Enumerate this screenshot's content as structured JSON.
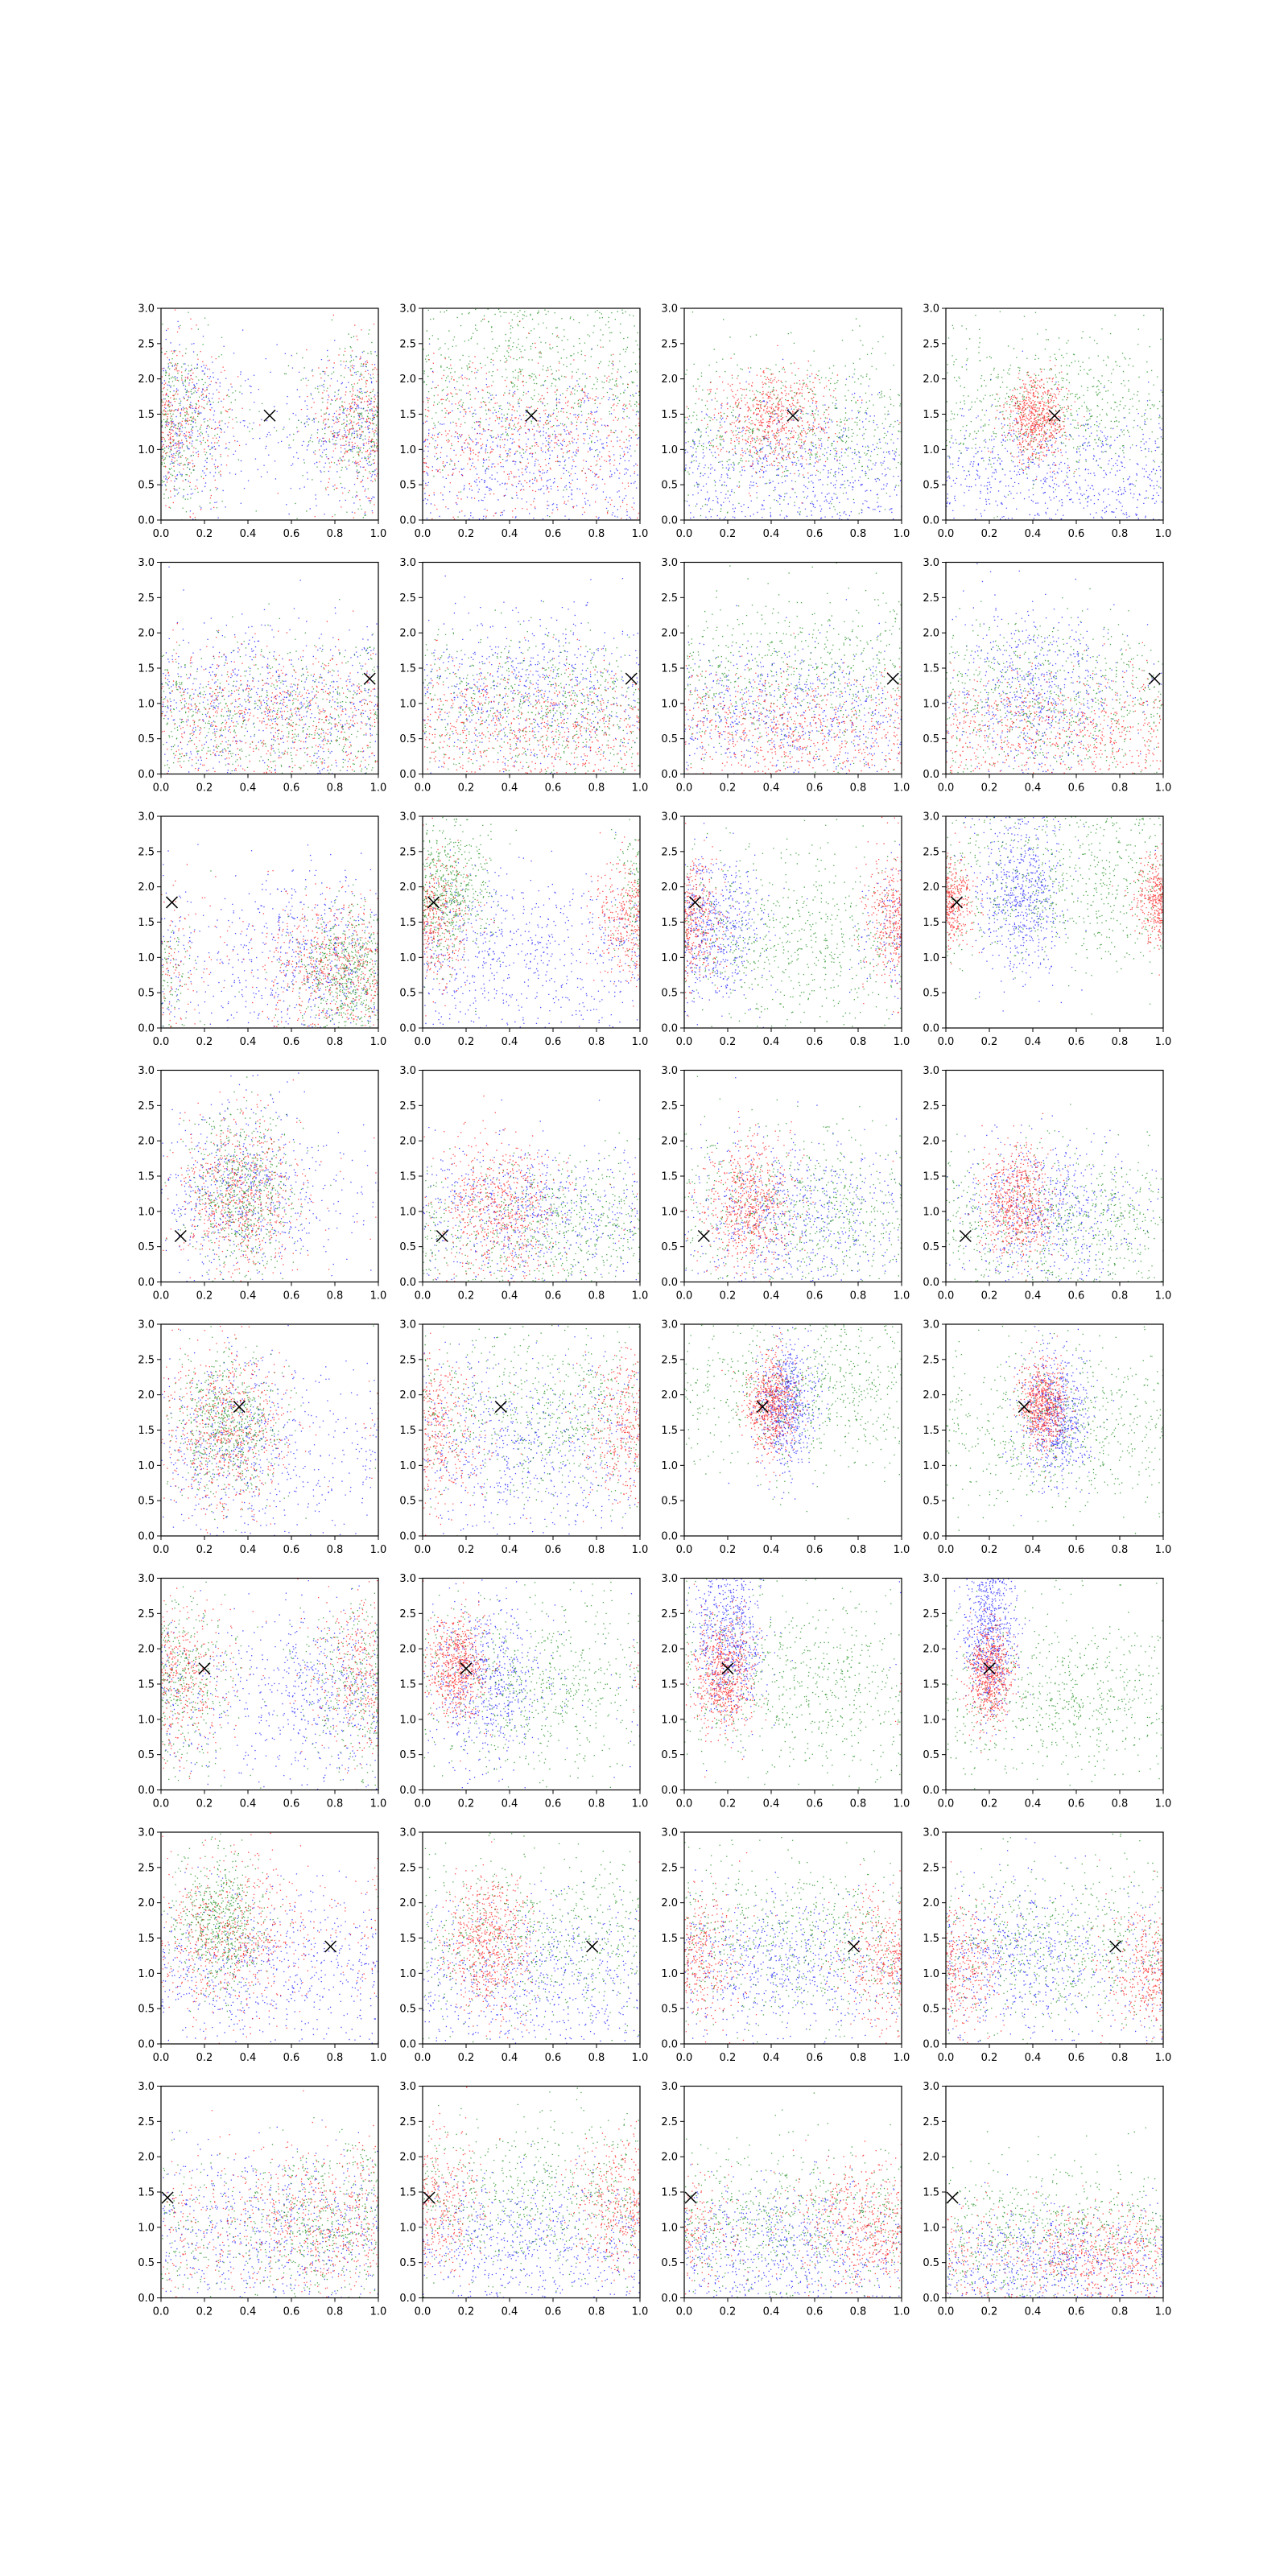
{
  "colors": {
    "red": "#ff0000",
    "green": "#008000",
    "blue": "#0000ff",
    "marker": "#000000",
    "axis": "#000000"
  },
  "chart_data": {
    "type": "scatter",
    "layout": "8 rows x 4 columns of scatter subplots",
    "xlim": [
      0,
      1
    ],
    "ylim": [
      0,
      3
    ],
    "xticks": [
      "0.0",
      "0.2",
      "0.4",
      "0.6",
      "0.8",
      "1.0"
    ],
    "yticks": [
      "0.0",
      "0.5",
      "1.0",
      "1.5",
      "2.0",
      "2.5",
      "3.0"
    ],
    "grid": false,
    "legend": "none",
    "marker_symbol": "x",
    "series_colors": [
      "red",
      "green",
      "blue"
    ],
    "rows": [
      {
        "marker": [
          0.5,
          1.48
        ],
        "panels": [
          [
            {
              "c": "red",
              "cx": [
                0.05,
                0.95
              ],
              "cy": 1.4,
              "sx": 0.14,
              "sy": 0.55
            },
            {
              "c": "green",
              "cx": [
                0.05,
                0.95
              ],
              "cy": 1.4,
              "sx": 0.16,
              "sy": 0.6
            },
            {
              "c": "blue",
              "cx": [
                0.1,
                0.9
              ],
              "cy": 1.3,
              "sx": 0.2,
              "sy": 0.6
            }
          ],
          [
            {
              "c": "red",
              "cx": 0.5,
              "cy": 1.2,
              "sx": 0.35,
              "sy": 0.6
            },
            {
              "c": "green",
              "cx": 0.5,
              "cy": 2.0,
              "sx": 0.4,
              "sy": 0.6
            },
            {
              "c": "blue",
              "cx": 0.5,
              "cy": 0.9,
              "sx": 0.4,
              "sy": 0.55
            }
          ],
          [
            {
              "c": "red",
              "cx": 0.4,
              "cy": 1.45,
              "sx": 0.14,
              "sy": 0.35
            },
            {
              "c": "green",
              "cx": 0.5,
              "cy": 1.3,
              "sx": 0.4,
              "sy": 0.6
            },
            {
              "c": "blue",
              "cx": 0.5,
              "cy": 0.75,
              "sx": 0.35,
              "sy": 0.5
            }
          ],
          [
            {
              "c": "red",
              "cx": 0.42,
              "cy": 1.45,
              "sx": 0.07,
              "sy": 0.3
            },
            {
              "c": "green",
              "cx": 0.5,
              "cy": 1.6,
              "sx": 0.3,
              "sy": 0.5
            },
            {
              "c": "blue",
              "cx": 0.5,
              "cy": 0.7,
              "sx": 0.35,
              "sy": 0.45
            }
          ]
        ]
      },
      {
        "marker": [
          0.96,
          1.35
        ],
        "panels": [
          [
            {
              "c": "red",
              "cx": 0.5,
              "cy": 0.85,
              "sx": 0.4,
              "sy": 0.5
            },
            {
              "c": "green",
              "cx": 0.5,
              "cy": 0.85,
              "sx": 0.4,
              "sy": 0.5
            },
            {
              "c": "blue",
              "cx": 0.5,
              "cy": 1.0,
              "sx": 0.4,
              "sy": 0.55
            }
          ],
          [
            {
              "c": "red",
              "cx": 0.5,
              "cy": 0.7,
              "sx": 0.35,
              "sy": 0.45
            },
            {
              "c": "green",
              "cx": 0.6,
              "cy": 0.95,
              "sx": 0.35,
              "sy": 0.5
            },
            {
              "c": "blue",
              "cx": 0.5,
              "cy": 1.2,
              "sx": 0.3,
              "sy": 0.55
            }
          ],
          [
            {
              "c": "red",
              "cx": 0.5,
              "cy": 0.65,
              "sx": 0.35,
              "sy": 0.4
            },
            {
              "c": "green",
              "cx": 0.5,
              "cy": 1.35,
              "sx": 0.4,
              "sy": 0.6
            },
            {
              "c": "blue",
              "cx": 0.5,
              "cy": 0.85,
              "sx": 0.35,
              "sy": 0.5
            }
          ],
          [
            {
              "c": "red",
              "cx": 0.5,
              "cy": 0.65,
              "sx": 0.4,
              "sy": 0.4
            },
            {
              "c": "green",
              "cx": 0.5,
              "cy": 1.1,
              "sx": 0.35,
              "sy": 0.55
            },
            {
              "c": "blue",
              "cx": 0.4,
              "cy": 1.2,
              "sx": 0.2,
              "sy": 0.55
            }
          ]
        ]
      },
      {
        "marker": [
          0.05,
          1.78
        ],
        "panels": [
          [
            {
              "c": "red",
              "cx": 0.8,
              "cy": 0.9,
              "sx": 0.18,
              "sy": 0.5
            },
            {
              "c": "green",
              "cx": 0.85,
              "cy": 0.8,
              "sx": 0.12,
              "sy": 0.45
            },
            {
              "c": "blue",
              "cx": 0.7,
              "cy": 1.0,
              "sx": 0.25,
              "sy": 0.6
            }
          ],
          [
            {
              "c": "red",
              "cx": [
                0.05,
                0.95
              ],
              "cy": 1.55,
              "sx": 0.09,
              "sy": 0.45
            },
            {
              "c": "green",
              "cx": 0.1,
              "cy": 1.9,
              "sx": 0.1,
              "sy": 0.5
            },
            {
              "c": "blue",
              "cx": 0.3,
              "cy": 1.0,
              "sx": 0.3,
              "sy": 0.6
            }
          ],
          [
            {
              "c": "red",
              "cx": [
                0.03,
                0.97
              ],
              "cy": 1.55,
              "sx": 0.07,
              "sy": 0.45
            },
            {
              "c": "green",
              "cx": 0.5,
              "cy": 1.3,
              "sx": 0.35,
              "sy": 0.6
            },
            {
              "c": "blue",
              "cx": 0.12,
              "cy": 1.4,
              "sx": 0.12,
              "sy": 0.5
            }
          ],
          [
            {
              "c": "red",
              "cx": [
                0.03,
                0.97
              ],
              "cy": 1.8,
              "sx": 0.05,
              "sy": 0.3
            },
            {
              "c": "green",
              "cx": 0.65,
              "cy": 2.0,
              "sx": 0.3,
              "sy": 0.6
            },
            {
              "c": "blue",
              "cx": 0.35,
              "cy": 1.9,
              "sx": 0.1,
              "sy": 0.55
            }
          ]
        ]
      },
      {
        "marker": [
          0.09,
          0.65
        ],
        "panels": [
          [
            {
              "c": "red",
              "cx": 0.37,
              "cy": 1.2,
              "sx": 0.14,
              "sy": 0.55
            },
            {
              "c": "green",
              "cx": 0.37,
              "cy": 1.2,
              "sx": 0.12,
              "sy": 0.55
            },
            {
              "c": "blue",
              "cx": 0.38,
              "cy": 1.3,
              "sx": 0.2,
              "sy": 0.6
            }
          ],
          [
            {
              "c": "red",
              "cx": 0.35,
              "cy": 1.05,
              "sx": 0.14,
              "sy": 0.5
            },
            {
              "c": "green",
              "cx": 0.6,
              "cy": 0.8,
              "sx": 0.3,
              "sy": 0.5
            },
            {
              "c": "blue",
              "cx": 0.45,
              "cy": 1.0,
              "sx": 0.3,
              "sy": 0.5
            }
          ],
          [
            {
              "c": "red",
              "cx": 0.3,
              "cy": 1.1,
              "sx": 0.1,
              "sy": 0.45
            },
            {
              "c": "green",
              "cx": 0.6,
              "cy": 1.0,
              "sx": 0.3,
              "sy": 0.55
            },
            {
              "c": "blue",
              "cx": 0.5,
              "cy": 1.0,
              "sx": 0.25,
              "sy": 0.55
            }
          ],
          [
            {
              "c": "red",
              "cx": 0.33,
              "cy": 1.15,
              "sx": 0.08,
              "sy": 0.4
            },
            {
              "c": "green",
              "cx": 0.6,
              "cy": 0.9,
              "sx": 0.3,
              "sy": 0.5
            },
            {
              "c": "blue",
              "cx": 0.45,
              "cy": 1.0,
              "sx": 0.2,
              "sy": 0.5
            }
          ]
        ]
      },
      {
        "marker": [
          0.36,
          1.83
        ],
        "panels": [
          [
            {
              "c": "red",
              "cx": 0.3,
              "cy": 1.5,
              "sx": 0.15,
              "sy": 0.55
            },
            {
              "c": "green",
              "cx": 0.3,
              "cy": 1.55,
              "sx": 0.12,
              "sy": 0.5
            },
            {
              "c": "blue",
              "cx": 0.35,
              "cy": 1.3,
              "sx": 0.25,
              "sy": 0.6
            }
          ],
          [
            {
              "c": "red",
              "cx": [
                0.05,
                0.95
              ],
              "cy": 1.5,
              "sx": 0.12,
              "sy": 0.55
            },
            {
              "c": "green",
              "cx": 0.65,
              "cy": 1.7,
              "sx": 0.3,
              "sy": 0.6
            },
            {
              "c": "blue",
              "cx": 0.4,
              "cy": 1.2,
              "sx": 0.3,
              "sy": 0.6
            }
          ],
          [
            {
              "c": "red",
              "cx": 0.4,
              "cy": 1.85,
              "sx": 0.06,
              "sy": 0.35
            },
            {
              "c": "green",
              "cx": 0.6,
              "cy": 2.0,
              "sx": 0.3,
              "sy": 0.55
            },
            {
              "c": "blue",
              "cx": 0.47,
              "cy": 1.85,
              "sx": 0.07,
              "sy": 0.45
            }
          ],
          [
            {
              "c": "red",
              "cx": 0.45,
              "cy": 1.85,
              "sx": 0.05,
              "sy": 0.3
            },
            {
              "c": "green",
              "cx": 0.5,
              "cy": 1.5,
              "sx": 0.3,
              "sy": 0.6
            },
            {
              "c": "blue",
              "cx": 0.5,
              "cy": 1.7,
              "sx": 0.08,
              "sy": 0.45
            }
          ]
        ]
      },
      {
        "marker": [
          0.2,
          1.72
        ],
        "panels": [
          [
            {
              "c": "red",
              "cx": [
                0.05,
                0.95
              ],
              "cy": 1.6,
              "sx": 0.14,
              "sy": 0.55
            },
            {
              "c": "green",
              "cx": [
                0.05,
                0.95
              ],
              "cy": 1.5,
              "sx": 0.16,
              "sy": 0.6
            },
            {
              "c": "blue",
              "cx": 0.75,
              "cy": 1.3,
              "sx": 0.25,
              "sy": 0.6
            }
          ],
          [
            {
              "c": "red",
              "cx": 0.15,
              "cy": 1.75,
              "sx": 0.07,
              "sy": 0.35
            },
            {
              "c": "green",
              "cx": 0.55,
              "cy": 1.5,
              "sx": 0.3,
              "sy": 0.6
            },
            {
              "c": "blue",
              "cx": 0.3,
              "cy": 1.5,
              "sx": 0.15,
              "sy": 0.55
            }
          ],
          [
            {
              "c": "red",
              "cx": 0.18,
              "cy": 1.6,
              "sx": 0.07,
              "sy": 0.4
            },
            {
              "c": "green",
              "cx": 0.6,
              "cy": 1.5,
              "sx": 0.3,
              "sy": 0.6
            },
            {
              "c": "blue",
              "cx": 0.2,
              "cy": 2.1,
              "sx": 0.08,
              "sy": 0.55
            }
          ],
          [
            {
              "c": "red",
              "cx": 0.2,
              "cy": 1.65,
              "sx": 0.05,
              "sy": 0.35
            },
            {
              "c": "green",
              "cx": 0.55,
              "cy": 1.3,
              "sx": 0.3,
              "sy": 0.6
            },
            {
              "c": "blue",
              "cx": 0.2,
              "cy": 2.2,
              "sx": 0.06,
              "sy": 0.5
            }
          ]
        ]
      },
      {
        "marker": [
          0.78,
          1.38
        ],
        "panels": [
          [
            {
              "c": "red",
              "cx": 0.3,
              "cy": 1.5,
              "sx": 0.2,
              "sy": 0.55
            },
            {
              "c": "green",
              "cx": 0.27,
              "cy": 1.7,
              "sx": 0.1,
              "sy": 0.5
            },
            {
              "c": "blue",
              "cx": 0.5,
              "cy": 1.1,
              "sx": 0.35,
              "sy": 0.55
            }
          ],
          [
            {
              "c": "red",
              "cx": 0.3,
              "cy": 1.45,
              "sx": 0.1,
              "sy": 0.5
            },
            {
              "c": "green",
              "cx": 0.6,
              "cy": 1.5,
              "sx": 0.35,
              "sy": 0.6
            },
            {
              "c": "blue",
              "cx": 0.5,
              "cy": 1.0,
              "sx": 0.35,
              "sy": 0.55
            }
          ],
          [
            {
              "c": "red",
              "cx": [
                0.05,
                0.95
              ],
              "cy": 1.2,
              "sx": 0.12,
              "sy": 0.5
            },
            {
              "c": "green",
              "cx": 0.5,
              "cy": 1.5,
              "sx": 0.35,
              "sy": 0.6
            },
            {
              "c": "blue",
              "cx": 0.4,
              "cy": 1.1,
              "sx": 0.3,
              "sy": 0.5
            }
          ],
          [
            {
              "c": "red",
              "cx": [
                0.05,
                0.95
              ],
              "cy": 1.05,
              "sx": 0.12,
              "sy": 0.45
            },
            {
              "c": "green",
              "cx": 0.5,
              "cy": 1.4,
              "sx": 0.35,
              "sy": 0.6
            },
            {
              "c": "blue",
              "cx": 0.3,
              "cy": 1.2,
              "sx": 0.25,
              "sy": 0.55
            }
          ]
        ]
      },
      {
        "marker": [
          0.03,
          1.42
        ],
        "panels": [
          [
            {
              "c": "red",
              "cx": 0.75,
              "cy": 1.1,
              "sx": 0.25,
              "sy": 0.55
            },
            {
              "c": "green",
              "cx": 0.75,
              "cy": 1.05,
              "sx": 0.25,
              "sy": 0.55
            },
            {
              "c": "blue",
              "cx": 0.5,
              "cy": 1.0,
              "sx": 0.35,
              "sy": 0.55
            }
          ],
          [
            {
              "c": "red",
              "cx": [
                0.05,
                0.9
              ],
              "cy": 1.3,
              "sx": 0.12,
              "sy": 0.5
            },
            {
              "c": "green",
              "cx": 0.6,
              "cy": 1.4,
              "sx": 0.35,
              "sy": 0.55
            },
            {
              "c": "blue",
              "cx": 0.4,
              "cy": 0.85,
              "sx": 0.35,
              "sy": 0.5
            }
          ],
          [
            {
              "c": "red",
              "cx": 0.85,
              "cy": 1.0,
              "sx": 0.18,
              "sy": 0.45
            },
            {
              "c": "green",
              "cx": 0.4,
              "cy": 1.1,
              "sx": 0.35,
              "sy": 0.5
            },
            {
              "c": "blue",
              "cx": 0.4,
              "cy": 0.7,
              "sx": 0.3,
              "sy": 0.45
            }
          ],
          [
            {
              "c": "red",
              "cx": 0.75,
              "cy": 0.65,
              "sx": 0.25,
              "sy": 0.35
            },
            {
              "c": "green",
              "cx": 0.4,
              "cy": 0.9,
              "sx": 0.35,
              "sy": 0.5
            },
            {
              "c": "blue",
              "cx": 0.4,
              "cy": 0.55,
              "sx": 0.3,
              "sy": 0.35
            }
          ]
        ]
      }
    ]
  }
}
